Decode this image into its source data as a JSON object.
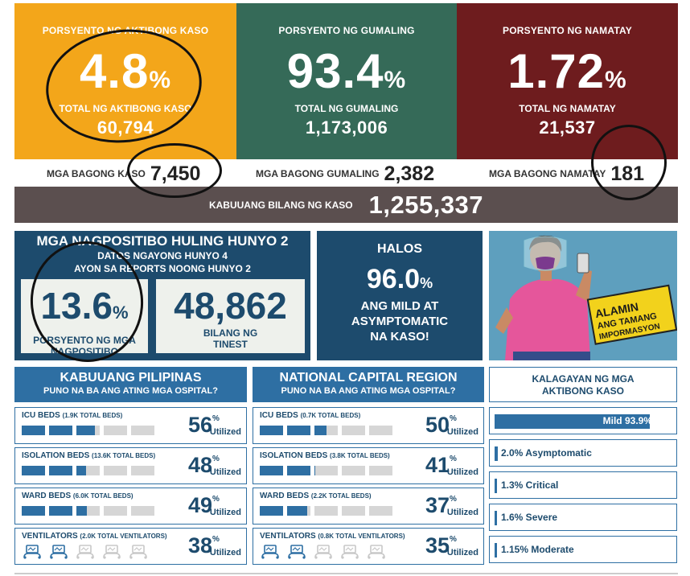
{
  "active": {
    "label": "PORSYENTO NG AKTIBONG KASO",
    "percent": "4.8",
    "pct_sign": "%",
    "total_label": "TOTAL NG AKTIBONG KASO",
    "total": "60,794"
  },
  "recovered": {
    "label": "PORSYENTO NG GUMALING",
    "percent": "93.4",
    "pct_sign": "%",
    "total_label": "TOTAL NG GUMALING",
    "total": "1,173,006"
  },
  "deaths": {
    "label": "PORSYENTO NG NAMATAY",
    "percent": "1.72",
    "pct_sign": "%",
    "total_label": "TOTAL NG NAMATAY",
    "total": "21,537"
  },
  "new": {
    "cases_label": "MGA BAGONG KASO",
    "cases": "7,450",
    "recovered_label": "MGA BAGONG GUMALING",
    "recovered": "2,382",
    "deaths_label": "MGA BAGONG NAMATAY",
    "deaths": "181"
  },
  "total": {
    "label": "KABUUANG BILANG NG KASO",
    "value": "1,255,337"
  },
  "positivity": {
    "title": "MGA NAGPOSITIBO HULING HUNYO 2",
    "line1": "DATOS NGAYONG HUNYO 4",
    "line2": "AYON SA REPORTS NOONG HUNYO 2",
    "rate": "13.6",
    "pct_sign": "%",
    "rate_cap1": "PORSYENTO NG MGA",
    "rate_cap2": "NAGPOSITIBO",
    "tested": "48,862",
    "tested_cap1": "BILANG NG",
    "tested_cap2": "TINEST"
  },
  "mild": {
    "line1": "HALOS",
    "value": "96.0",
    "pct_sign": "%",
    "line2": "ANG MILD AT",
    "line3": "ASYMPTOMATIC",
    "line4": "NA KASO!"
  },
  "illustration": {
    "line1": "ALAMIN",
    "line2": "ANG TAMANG",
    "line3": "IMPORMASYON"
  },
  "hosp_ph": {
    "title": "KABUUANG PILIPINAS",
    "subtitle": "PUNO NA BA ANG ATING MGA OSPITAL?",
    "rows": [
      {
        "label": "ICU BEDS",
        "detail": "(1.9K TOTAL BEDS)",
        "value": "56",
        "fill": 0.56
      },
      {
        "label": "ISOLATION BEDS",
        "detail": "(13.6K TOTAL BEDS)",
        "value": "48",
        "fill": 0.48
      },
      {
        "label": "WARD BEDS",
        "detail": "(6.0K TOTAL BEDS)",
        "value": "49",
        "fill": 0.49
      },
      {
        "label": "VENTILATORS",
        "detail": "(2.0K TOTAL VENTILATORS)",
        "value": "38",
        "fill": 0.38
      }
    ]
  },
  "hosp_ncr": {
    "title": "NATIONAL CAPITAL REGION",
    "subtitle": "PUNO NA BA ANG ATING MGA OSPITAL?",
    "rows": [
      {
        "label": "ICU BEDS",
        "detail": "(0.7K TOTAL BEDS)",
        "value": "50",
        "fill": 0.5
      },
      {
        "label": "ISOLATION BEDS",
        "detail": "(3.8K TOTAL BEDS)",
        "value": "41",
        "fill": 0.41
      },
      {
        "label": "WARD BEDS",
        "detail": "(2.2K TOTAL BEDS)",
        "value": "37",
        "fill": 0.37
      },
      {
        "label": "VENTILATORS",
        "detail": "(0.8K TOTAL VENTILATORS)",
        "value": "35",
        "fill": 0.35
      }
    ]
  },
  "utilized_label": "Utilized",
  "pct_sign": "%",
  "status": {
    "title1": "KALAGAYAN NG MGA",
    "title2": "AKTIBONG KASO",
    "items": [
      {
        "label": "Mild 93.9%",
        "share": 0.939
      },
      {
        "label": "2.0% Asymptomatic",
        "share": 0.02
      },
      {
        "label": "1.3% Critical",
        "share": 0.013
      },
      {
        "label": "1.6% Severe",
        "share": 0.016
      },
      {
        "label": "1.15% Moderate",
        "share": 0.0115
      }
    ]
  },
  "colors": {
    "active": "#f3a61a",
    "recovered": "#356a58",
    "deaths": "#6e1c1e",
    "total": "#5b4f4f",
    "navy": "#1d4b6d",
    "blue": "#2e6fa3"
  }
}
